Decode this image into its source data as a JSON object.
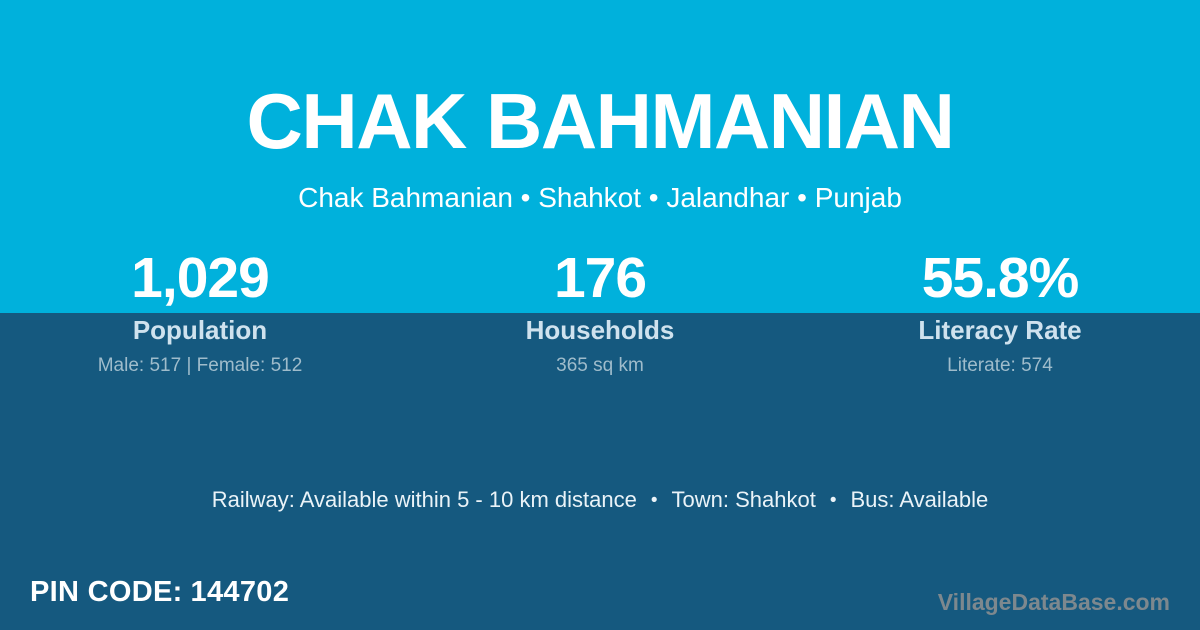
{
  "header": {
    "title": "CHAK BAHMANIAN",
    "breadcrumb": "Chak Bahmanian • Shahkot • Jalandhar • Punjab"
  },
  "stats": [
    {
      "value": "1,029",
      "label": "Population",
      "detail": "Male: 517 | Female: 512"
    },
    {
      "value": "176",
      "label": "Households",
      "detail": "365 sq km"
    },
    {
      "value": "55.8%",
      "label": "Literacy Rate",
      "detail": "Literate: 574"
    }
  ],
  "amenities": {
    "railway": "Railway: Available within 5 - 10 km distance",
    "separator": "•",
    "town": "Town: Shahkot",
    "bus": "Bus: Available"
  },
  "footer": {
    "pin_label": "PIN CODE:",
    "pin_value": "144702",
    "watermark": "VillageDataBase.com"
  },
  "colors": {
    "top_band": "#00b1dc",
    "bottom_band": "#15597f",
    "primary_text": "#ffffff",
    "label_text": "#cfe2ee",
    "detail_text": "#9fbccb",
    "watermark_text": "#7d888e"
  }
}
